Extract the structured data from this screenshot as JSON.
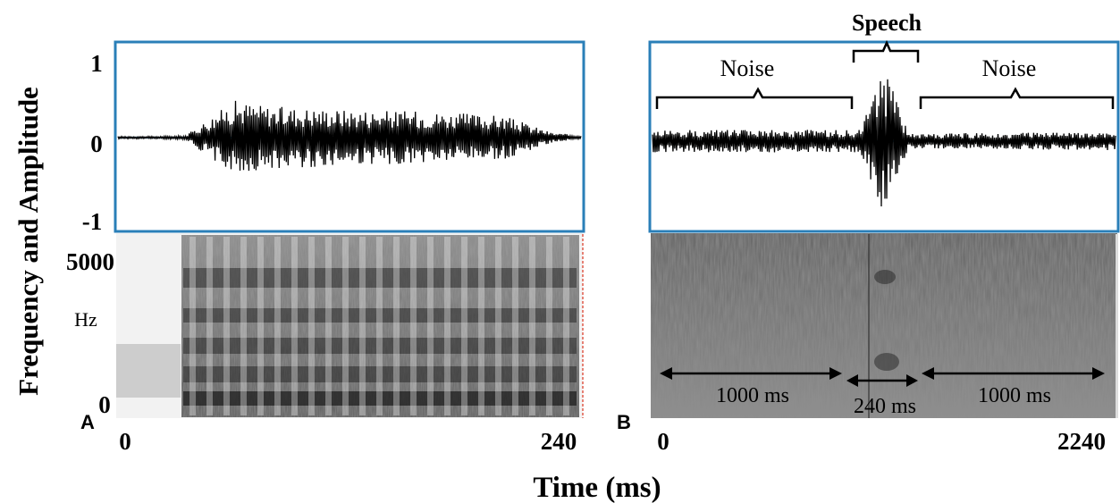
{
  "figure": {
    "y_axis_title": "Frequency and Amplitude",
    "x_axis_title": "Time (ms)",
    "panel_a_letter": "A",
    "panel_b_letter": "B"
  },
  "chart_data": [
    {
      "type": "line",
      "panel": "A",
      "subplot": "waveform",
      "yticks": [
        "1",
        "0",
        "-1"
      ],
      "ylim": [
        -1,
        1
      ],
      "xticks": [
        "0",
        "240"
      ],
      "xlim": [
        0,
        240
      ],
      "x": [
        0,
        20,
        35,
        60,
        80,
        120,
        160,
        200,
        225,
        240
      ],
      "envelope": [
        0.02,
        0.02,
        0.03,
        0.6,
        0.5,
        0.45,
        0.42,
        0.35,
        0.08,
        0.03
      ]
    },
    {
      "type": "heatmap",
      "panel": "A",
      "subplot": "spectrogram",
      "yticks": [
        "5000",
        "0"
      ],
      "ylabel": "Hz",
      "xticks": [
        "0",
        "240"
      ],
      "xlim": [
        0,
        240
      ],
      "ylim": [
        0,
        5000
      ]
    },
    {
      "type": "line",
      "panel": "B",
      "subplot": "waveform",
      "xlim": [
        0,
        2240
      ],
      "x": [
        0,
        1000,
        1120,
        1240,
        2240
      ],
      "envelope": [
        0.15,
        0.15,
        1.0,
        0.1,
        0.12
      ],
      "annotations": [
        {
          "text": "Noise",
          "x_range": [
            0,
            1000
          ]
        },
        {
          "text": "Speech",
          "x_range": [
            1000,
            1240
          ]
        },
        {
          "text": "Noise",
          "x_range": [
            1240,
            2240
          ]
        }
      ]
    },
    {
      "type": "heatmap",
      "panel": "B",
      "subplot": "spectrogram",
      "xticks": [
        "0",
        "2240"
      ],
      "xlim": [
        0,
        2240
      ],
      "segments": [
        {
          "label": "1000 ms",
          "x_range": [
            0,
            1000
          ]
        },
        {
          "label": "240 ms",
          "x_range": [
            1000,
            1240
          ]
        },
        {
          "label": "1000 ms",
          "x_range": [
            1240,
            2240
          ]
        }
      ]
    }
  ]
}
